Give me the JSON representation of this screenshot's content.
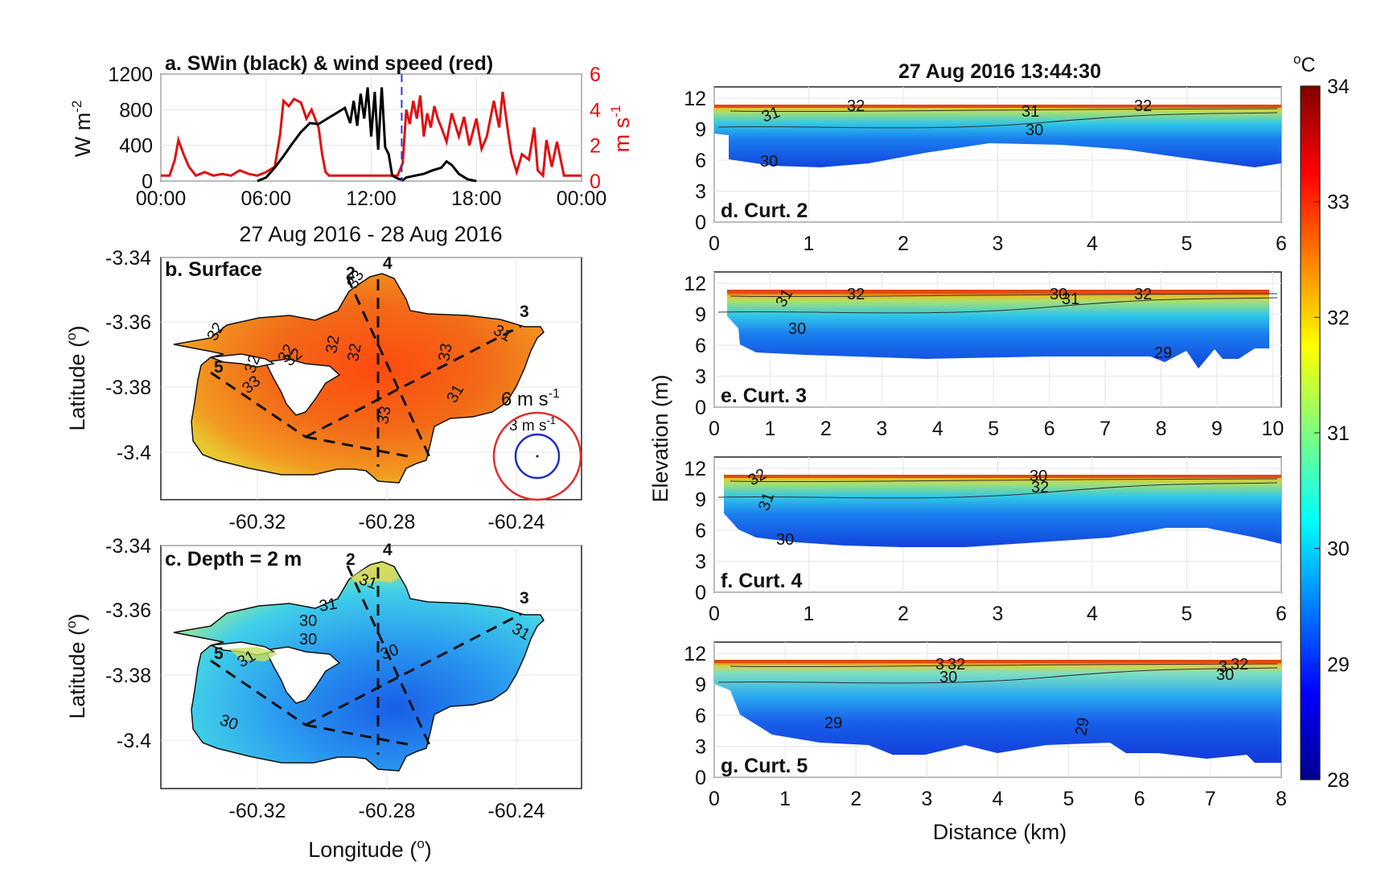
{
  "colors": {
    "swin": "#000000",
    "wind": "#e01010",
    "marker": "#2a3adb",
    "ring_outer": "#e03030",
    "ring_inner": "#2030c0"
  },
  "colorbar": {
    "unit": "oC",
    "ticks": [
      "34",
      "33",
      "32",
      "31",
      "30",
      "29",
      "28"
    ],
    "range": [
      28,
      34
    ],
    "colormap": "jet"
  },
  "chart_data": [
    {
      "type": "line",
      "id": "a",
      "title": "a. SWin (black) & wind speed (red)",
      "xlabel": "27 Aug 2016 - 28 Aug 2016",
      "ylabel_left": "W m-2",
      "ylabel_right": "m s-1",
      "xticks": [
        "00:00",
        "06:00",
        "12:00",
        "18:00",
        "00:00"
      ],
      "yticks_left": [
        "0",
        "400",
        "800",
        "1200"
      ],
      "yticks_right": [
        "0",
        "2",
        "4",
        "6"
      ],
      "xlim_hours": [
        0,
        24
      ],
      "ylim_left": [
        0,
        1200
      ],
      "ylim_right": [
        0,
        6
      ],
      "marker_time_hours": 13.74,
      "series": [
        {
          "name": "SWin",
          "axis": "left",
          "x": [
            5.5,
            6,
            6.5,
            7,
            7.5,
            8,
            8.5,
            9,
            9.5,
            10,
            10.5,
            10.8,
            11,
            11.2,
            11.4,
            11.6,
            11.8,
            12,
            12.2,
            12.4,
            12.6,
            12.8,
            13,
            13.2,
            13.5,
            13.8,
            14,
            14.5,
            15,
            15.5,
            16,
            16.3,
            16.6,
            17,
            17.5,
            18
          ],
          "y": [
            0,
            40,
            150,
            280,
            420,
            550,
            650,
            640,
            700,
            760,
            820,
            650,
            900,
            620,
            980,
            700,
            1050,
            500,
            1000,
            350,
            1050,
            380,
            300,
            60,
            30,
            10,
            40,
            60,
            80,
            120,
            150,
            220,
            180,
            80,
            20,
            0
          ]
        },
        {
          "name": "wind speed",
          "axis": "right",
          "x": [
            0,
            0.5,
            0.8,
            1,
            1.3,
            1.6,
            2,
            2.5,
            3,
            3.5,
            4,
            4.5,
            5,
            5.5,
            6,
            6.5,
            6.8,
            7,
            7.3,
            7.6,
            8,
            8.3,
            8.6,
            9,
            9.2,
            9.4,
            9.6,
            10,
            10.5,
            11,
            11.5,
            12,
            12.5,
            13,
            13.5,
            13.8,
            14,
            14.2,
            14.4,
            14.6,
            14.8,
            15,
            15.2,
            15.4,
            15.6,
            15.8,
            16,
            16.3,
            16.6,
            17,
            17.3,
            17.6,
            18,
            18.3,
            18.6,
            19,
            19.3,
            19.5,
            19.8,
            20,
            20.3,
            20.6,
            21,
            21.3,
            21.5,
            21.8,
            22,
            22.3,
            22.6,
            23,
            23.5,
            24
          ],
          "y": [
            0.3,
            0.3,
            1.2,
            2.3,
            1.5,
            0.8,
            0.3,
            0.5,
            0.3,
            0.4,
            0.3,
            0.6,
            0.4,
            0.3,
            0.5,
            0.8,
            2.6,
            4.5,
            4.2,
            4.6,
            4.4,
            3.5,
            4.0,
            3.0,
            1.5,
            0.5,
            0.3,
            0.3,
            0.3,
            0.3,
            0.3,
            0.3,
            0.3,
            0.3,
            0.3,
            1.0,
            4.0,
            3.2,
            4.5,
            3.5,
            4.8,
            2.5,
            3.8,
            3.0,
            4.2,
            3.5,
            3.0,
            2.2,
            3.8,
            2.5,
            3.6,
            2.0,
            3.5,
            1.8,
            2.5,
            4.5,
            3.0,
            5.0,
            2.8,
            1.5,
            0.5,
            1.5,
            1.2,
            3.0,
            0.6,
            0.3,
            2.3,
            0.8,
            2.2,
            0.3,
            0.3,
            0.3
          ]
        }
      ]
    },
    {
      "type": "heatmap",
      "id": "b",
      "title": "b. Surface",
      "ylabel": "Latitude (o)",
      "xticks": [
        "-60.32",
        "-60.28",
        "-60.24"
      ],
      "yticks": [
        "-3.34",
        "-3.36",
        "-3.38",
        "-3.4"
      ],
      "transect_labels": [
        "2",
        "4",
        "3",
        "5"
      ],
      "contour_labels": [
        "32",
        "33",
        "32",
        "32",
        "32",
        "33",
        "32",
        "32",
        "31",
        "33",
        "33",
        "31"
      ],
      "scale_labels": [
        "6 m s-1",
        "3 m s-1"
      ],
      "field_range_C": [
        31,
        33.5
      ]
    },
    {
      "type": "heatmap",
      "id": "c",
      "title": "c. Depth = 2 m",
      "ylabel": "Latitude (o)",
      "xlabel": "Longitude (o)",
      "xticks": [
        "-60.32",
        "-60.28",
        "-60.24"
      ],
      "yticks": [
        "-3.34",
        "-3.36",
        "-3.38",
        "-3.4"
      ],
      "transect_labels": [
        "2",
        "4",
        "3",
        "5"
      ],
      "contour_labels": [
        "30",
        "31",
        "30",
        "30",
        "31",
        "31",
        "30",
        "31"
      ],
      "field_range_C": [
        29,
        32
      ]
    },
    {
      "type": "heatmap",
      "id": "d",
      "title": "d. Curt. 2",
      "xticks": [
        "0",
        "1",
        "2",
        "3",
        "4",
        "5",
        "6"
      ],
      "yticks": [
        "0",
        "3",
        "6",
        "9",
        "12"
      ],
      "contour_labels": [
        "32",
        "31",
        "31",
        "32",
        "30",
        "30"
      ]
    },
    {
      "type": "heatmap",
      "id": "e",
      "title": "e. Curt. 3",
      "xticks": [
        "0",
        "1",
        "2",
        "3",
        "4",
        "5",
        "6",
        "7",
        "8",
        "9",
        "10"
      ],
      "yticks": [
        "0",
        "3",
        "6",
        "9",
        "12"
      ],
      "contour_labels": [
        "32",
        "31",
        "30",
        "31",
        "30",
        "32",
        "29"
      ]
    },
    {
      "type": "heatmap",
      "id": "f",
      "title": "f. Curt. 4",
      "xticks": [
        "0",
        "1",
        "2",
        "3",
        "4",
        "5",
        "6"
      ],
      "yticks": [
        "0",
        "3",
        "6",
        "9",
        "12"
      ],
      "contour_labels": [
        "32",
        "31",
        "30",
        "32",
        "30"
      ]
    },
    {
      "type": "heatmap",
      "id": "g",
      "title": "g. Curt. 5",
      "xticks": [
        "0",
        "1",
        "2",
        "3",
        "4",
        "5",
        "6",
        "7",
        "8"
      ],
      "yticks": [
        "0",
        "3",
        "6",
        "9",
        "12"
      ],
      "contour_labels": [
        "3",
        "32",
        "30",
        "29",
        "29",
        "3",
        "32",
        "30"
      ]
    }
  ],
  "right_column": {
    "title": "27 Aug 2016 13:44:30",
    "ylabel": "Elevation (m)",
    "xlabel": "Distance (km)"
  }
}
